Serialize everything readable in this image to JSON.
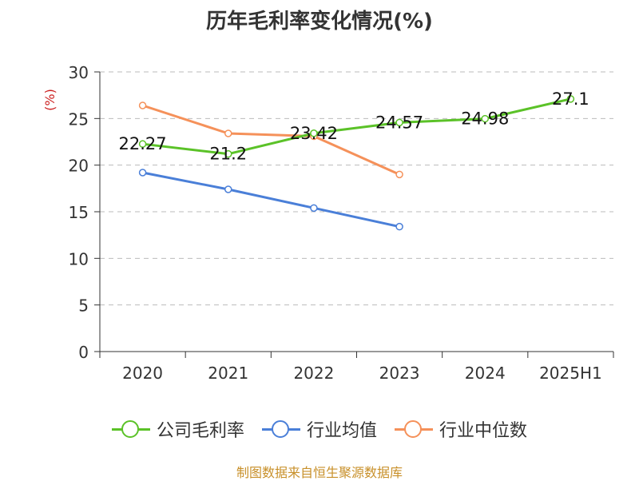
{
  "chart_data": {
    "type": "line",
    "title": "历年毛利率变化情况(%)",
    "ylabel": "(%)",
    "categories": [
      "2020",
      "2021",
      "2022",
      "2023",
      "2024",
      "2025H1"
    ],
    "ylim": [
      0,
      30
    ],
    "yticks": [
      0,
      5,
      10,
      15,
      20,
      25,
      30
    ],
    "grid": true,
    "legend_position": "bottom",
    "series": [
      {
        "name": "公司毛利率",
        "color": "#5bc228",
        "values": [
          22.27,
          21.2,
          23.42,
          24.57,
          24.98,
          27.1
        ],
        "show_labels": true
      },
      {
        "name": "行业均值",
        "color": "#4a7fd8",
        "values": [
          19.2,
          17.4,
          15.4,
          13.4,
          null,
          null
        ],
        "show_labels": false
      },
      {
        "name": "行业中位数",
        "color": "#f5915a",
        "values": [
          26.4,
          23.4,
          23.1,
          19.0,
          null,
          null
        ],
        "show_labels": false
      }
    ]
  },
  "source": "制图数据来自恒生聚源数据库"
}
